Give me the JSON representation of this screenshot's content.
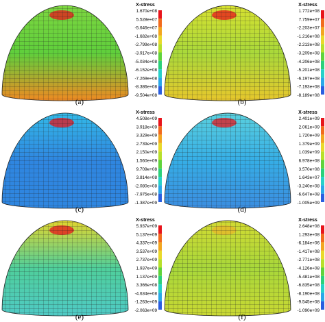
{
  "panels": [
    {
      "label": "(a)",
      "legend_title": "X-stress",
      "legend_values": [
        "1.670e+08",
        "5.528e+07",
        "-5.646e+07",
        "-1.682e+08",
        "-2.799e+08",
        "-3.917e+08",
        "-5.034e+08",
        "-6.152e+08",
        "-7.269e+08",
        "-8.386e+08",
        "-9.504e+08"
      ]
    },
    {
      "label": "(b)",
      "legend_title": "X-stress",
      "legend_values": [
        "1.772e+08",
        "7.759e+07",
        "-2.203e+07",
        "-1.216e+08",
        "-2.213e+08",
        "-3.209e+08",
        "-4.206e+08",
        "-5.201e+08",
        "-6.197e+08",
        "-7.193e+08",
        "-8.189e+08"
      ]
    },
    {
      "label": "(c)",
      "legend_title": "X-stress",
      "legend_values": [
        "4.508e+09",
        "3.918e+09",
        "3.329e+09",
        "2.739e+09",
        "2.150e+09",
        "1.560e+09",
        "9.709e+08",
        "3.814e+08",
        "-2.080e+08",
        "-7.975e+08",
        "-1.387e+09"
      ]
    },
    {
      "label": "(d)",
      "legend_title": "X-stress",
      "legend_values": [
        "2.401e+09",
        "2.061e+09",
        "1.720e+09",
        "1.379e+09",
        "1.039e+09",
        "6.978e+08",
        "3.570e+08",
        "1.643e+07",
        "-3.240e+08",
        "-6.647e+08",
        "-1.005e+09"
      ]
    },
    {
      "label": "(e)",
      "legend_title": "X-stress",
      "legend_values": [
        "5.937e+09",
        "5.137e+09",
        "4.337e+09",
        "3.537e+09",
        "2.737e+09",
        "1.937e+09",
        "1.137e+09",
        "3.366e+08",
        "-4.634e+08",
        "-1.263e+09",
        "-2.063e+09"
      ]
    },
    {
      "label": "(f)",
      "legend_title": "X-stress",
      "legend_values": [
        "2.648e+08",
        "1.293e+08",
        "-6.184e+06",
        "-1.417e+08",
        "-2.771e+08",
        "-4.126e+08",
        "-5.481e+08",
        "-6.835e+08",
        "-8.190e+08",
        "-9.545e+08",
        "-1.090e+09"
      ]
    }
  ]
}
